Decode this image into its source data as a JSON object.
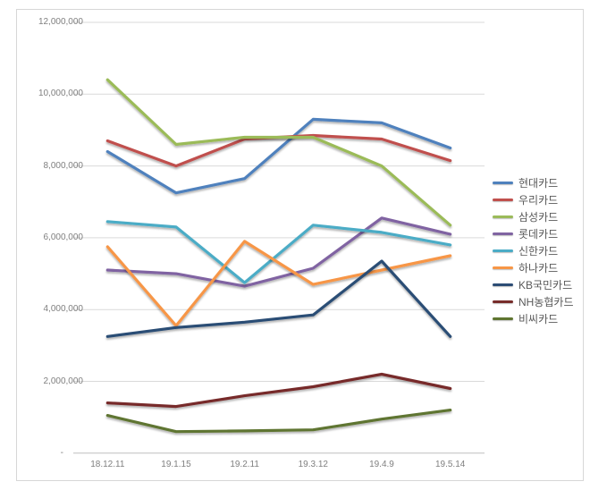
{
  "chart_data": {
    "type": "line",
    "title": "",
    "xlabel": "",
    "ylabel": "",
    "ylim": [
      0,
      12000000
    ],
    "grid": "horizontal",
    "legend_position": "right",
    "x_categories": [
      "18.12.11",
      "19.1.15",
      "19.2.11",
      "19.3.12",
      "19.4.9",
      "19.5.14"
    ],
    "y_ticks": [
      {
        "label": "12,000,000",
        "value": 12000000
      },
      {
        "label": "10,000,000",
        "value": 10000000
      },
      {
        "label": "8,000,000",
        "value": 8000000
      },
      {
        "label": "6,000,000",
        "value": 6000000
      },
      {
        "label": "4,000,000",
        "value": 4000000
      },
      {
        "label": "2,000,000",
        "value": 2000000
      },
      {
        "label": "-",
        "value": 0
      }
    ],
    "series": [
      {
        "name": "현대카드",
        "color": "#4F81BD",
        "values": [
          8400000,
          7250000,
          7650000,
          9300000,
          9200000,
          8500000
        ]
      },
      {
        "name": "우리카드",
        "color": "#C0504D",
        "values": [
          8700000,
          8000000,
          8750000,
          8850000,
          8750000,
          8150000
        ]
      },
      {
        "name": "삼성카드",
        "color": "#9BBB59",
        "values": [
          10400000,
          8600000,
          8800000,
          8800000,
          8000000,
          6350000
        ]
      },
      {
        "name": "롯데카드",
        "color": "#8064A2",
        "values": [
          5100000,
          5000000,
          4650000,
          5150000,
          6550000,
          6100000
        ]
      },
      {
        "name": "신한카드",
        "color": "#4BACC6",
        "values": [
          6450000,
          6300000,
          4750000,
          6350000,
          6150000,
          5800000
        ]
      },
      {
        "name": "하나카드",
        "color": "#F79646",
        "values": [
          5750000,
          3550000,
          5900000,
          4700000,
          5100000,
          5500000
        ]
      },
      {
        "name": "KB국민카드",
        "color": "#2C4D75",
        "values": [
          3250000,
          3500000,
          3650000,
          3850000,
          5350000,
          3250000
        ]
      },
      {
        "name": "NH농협카드",
        "color": "#772C2A",
        "values": [
          1400000,
          1300000,
          1600000,
          1850000,
          2200000,
          1800000
        ]
      },
      {
        "name": "비씨카드",
        "color": "#5F7530",
        "values": [
          1050000,
          600000,
          620000,
          650000,
          950000,
          1200000
        ]
      }
    ],
    "colors": {
      "gridline": "#D9D9D9",
      "axis_line": "#BFBFBF",
      "axis_text": "#7F7F7F",
      "legend_text": "#595959",
      "frame_border": "#D7D7D7",
      "background": "#FFFFFF"
    }
  }
}
